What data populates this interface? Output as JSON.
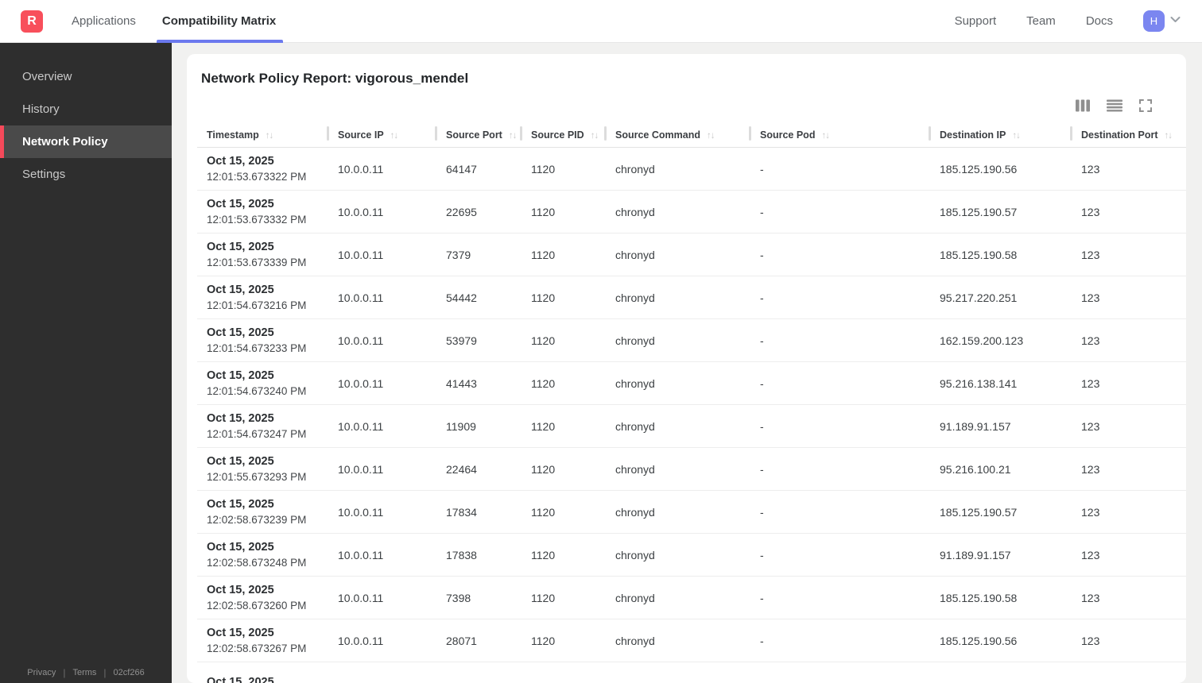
{
  "navbar": {
    "logo_letter": "R",
    "tabs": [
      {
        "label": "Applications",
        "active": false
      },
      {
        "label": "Compatibility Matrix",
        "active": true
      }
    ],
    "links": [
      "Support",
      "Team",
      "Docs"
    ],
    "avatar_initial": "H"
  },
  "sidebar": {
    "items": [
      {
        "label": "Overview",
        "active": false
      },
      {
        "label": "History",
        "active": false
      },
      {
        "label": "Network Policy",
        "active": true
      },
      {
        "label": "Settings",
        "active": false
      }
    ],
    "footer": {
      "privacy": "Privacy",
      "terms": "Terms",
      "build_id": "02cf266"
    }
  },
  "main": {
    "title": "Network Policy Report: vigorous_mendel",
    "toolbar_icons": [
      "columns-icon",
      "rows-icon",
      "fullscreen-icon"
    ]
  },
  "table": {
    "sort_glyph": "↑↓",
    "columns": [
      {
        "label": "Timestamp",
        "key": "timestamp"
      },
      {
        "label": "Source IP",
        "key": "source_ip"
      },
      {
        "label": "Source Port",
        "key": "source_port"
      },
      {
        "label": "Source PID",
        "key": "source_pid"
      },
      {
        "label": "Source Command",
        "key": "source_command"
      },
      {
        "label": "Source Pod",
        "key": "source_pod"
      },
      {
        "label": "Destination IP",
        "key": "destination_ip"
      },
      {
        "label": "Destination Port",
        "key": "destination_port"
      }
    ],
    "rows": [
      {
        "date": "Oct 15, 2025",
        "time": "12:01:53.673322 PM",
        "source_ip": "10.0.0.11",
        "source_port": "64147",
        "source_pid": "1120",
        "source_command": "chronyd",
        "source_pod": "-",
        "destination_ip": "185.125.190.56",
        "destination_port": "123"
      },
      {
        "date": "Oct 15, 2025",
        "time": "12:01:53.673332 PM",
        "source_ip": "10.0.0.11",
        "source_port": "22695",
        "source_pid": "1120",
        "source_command": "chronyd",
        "source_pod": "-",
        "destination_ip": "185.125.190.57",
        "destination_port": "123"
      },
      {
        "date": "Oct 15, 2025",
        "time": "12:01:53.673339 PM",
        "source_ip": "10.0.0.11",
        "source_port": "7379",
        "source_pid": "1120",
        "source_command": "chronyd",
        "source_pod": "-",
        "destination_ip": "185.125.190.58",
        "destination_port": "123"
      },
      {
        "date": "Oct 15, 2025",
        "time": "12:01:54.673216 PM",
        "source_ip": "10.0.0.11",
        "source_port": "54442",
        "source_pid": "1120",
        "source_command": "chronyd",
        "source_pod": "-",
        "destination_ip": "95.217.220.251",
        "destination_port": "123"
      },
      {
        "date": "Oct 15, 2025",
        "time": "12:01:54.673233 PM",
        "source_ip": "10.0.0.11",
        "source_port": "53979",
        "source_pid": "1120",
        "source_command": "chronyd",
        "source_pod": "-",
        "destination_ip": "162.159.200.123",
        "destination_port": "123"
      },
      {
        "date": "Oct 15, 2025",
        "time": "12:01:54.673240 PM",
        "source_ip": "10.0.0.11",
        "source_port": "41443",
        "source_pid": "1120",
        "source_command": "chronyd",
        "source_pod": "-",
        "destination_ip": "95.216.138.141",
        "destination_port": "123"
      },
      {
        "date": "Oct 15, 2025",
        "time": "12:01:54.673247 PM",
        "source_ip": "10.0.0.11",
        "source_port": "11909",
        "source_pid": "1120",
        "source_command": "chronyd",
        "source_pod": "-",
        "destination_ip": "91.189.91.157",
        "destination_port": "123"
      },
      {
        "date": "Oct 15, 2025",
        "time": "12:01:55.673293 PM",
        "source_ip": "10.0.0.11",
        "source_port": "22464",
        "source_pid": "1120",
        "source_command": "chronyd",
        "source_pod": "-",
        "destination_ip": "95.216.100.21",
        "destination_port": "123"
      },
      {
        "date": "Oct 15, 2025",
        "time": "12:02:58.673239 PM",
        "source_ip": "10.0.0.11",
        "source_port": "17834",
        "source_pid": "1120",
        "source_command": "chronyd",
        "source_pod": "-",
        "destination_ip": "185.125.190.57",
        "destination_port": "123"
      },
      {
        "date": "Oct 15, 2025",
        "time": "12:02:58.673248 PM",
        "source_ip": "10.0.0.11",
        "source_port": "17838",
        "source_pid": "1120",
        "source_command": "chronyd",
        "source_pod": "-",
        "destination_ip": "91.189.91.157",
        "destination_port": "123"
      },
      {
        "date": "Oct 15, 2025",
        "time": "12:02:58.673260 PM",
        "source_ip": "10.0.0.11",
        "source_port": "7398",
        "source_pid": "1120",
        "source_command": "chronyd",
        "source_pod": "-",
        "destination_ip": "185.125.190.58",
        "destination_port": "123"
      },
      {
        "date": "Oct 15, 2025",
        "time": "12:02:58.673267 PM",
        "source_ip": "10.0.0.11",
        "source_port": "28071",
        "source_pid": "1120",
        "source_command": "chronyd",
        "source_pod": "-",
        "destination_ip": "185.125.190.56",
        "destination_port": "123"
      },
      {
        "date": "Oct 15, 2025",
        "time": "",
        "source_ip": "",
        "source_port": "",
        "source_pid": "",
        "source_command": "",
        "source_pod": "",
        "destination_ip": "",
        "destination_port": ""
      }
    ]
  },
  "colors": {
    "accent_red": "#f84f5b",
    "accent_indigo": "#6b79ee",
    "avatar_indigo": "#7b86f0",
    "sidebar_bg": "#2e2e2e",
    "sidebar_active_bg": "#4a4a4a",
    "page_bg": "#f1f1f0"
  }
}
